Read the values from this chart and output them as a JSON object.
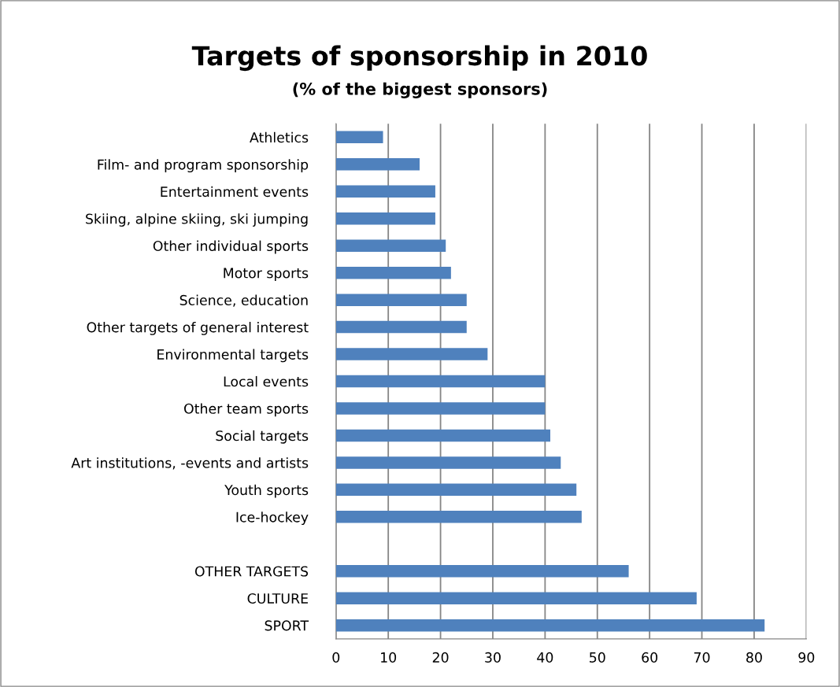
{
  "chart_data": {
    "type": "bar",
    "orientation": "horizontal",
    "title": "Targets of sponsorship in 2010",
    "subtitle": "(% of the biggest sponsors)",
    "categories": [
      "Athletics",
      "Film- and program sponsorship",
      "Entertainment events",
      "Skiing, alpine skiing, ski jumping",
      "Other individual sports",
      "Motor sports",
      "Science, education",
      "Other targets of general interest",
      "Environmental targets",
      "Local events",
      "Other team sports",
      "Social targets",
      "Art institutions, -events and artists",
      "Youth sports",
      "Ice-hockey",
      null,
      "OTHER TARGETS",
      "CULTURE",
      "SPORT"
    ],
    "values": [
      9,
      16,
      19,
      19,
      21,
      22,
      25,
      25,
      29,
      40,
      40,
      41,
      43,
      46,
      47,
      null,
      56,
      69,
      82
    ],
    "color": "#4f81bd",
    "xlim": [
      0,
      90
    ],
    "xticks": [
      0,
      10,
      20,
      30,
      40,
      50,
      60,
      70,
      80,
      90
    ],
    "grid": "x",
    "legend": false
  }
}
